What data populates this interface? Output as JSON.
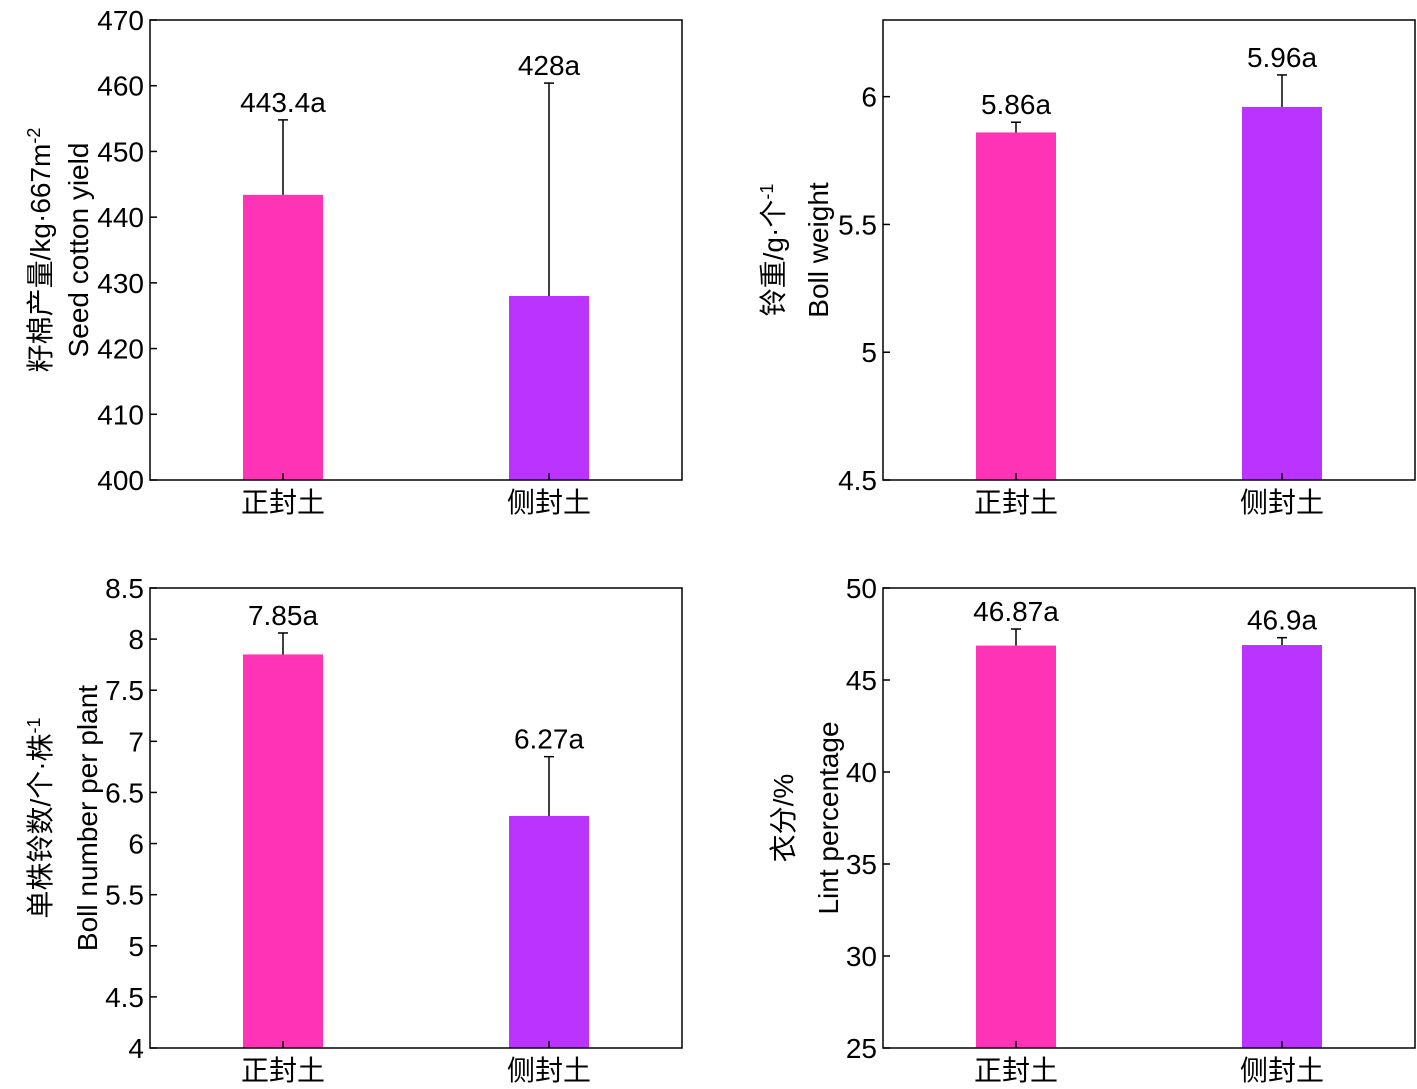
{
  "chart_data": [
    {
      "type": "bar",
      "categories": [
        "正封土",
        "侧封土"
      ],
      "values": [
        443.4,
        428
      ],
      "errors": [
        11.4,
        32.4
      ],
      "data_labels": [
        "443.4a",
        "428a"
      ],
      "ylabel_cn": "籽棉产量/kg·667m",
      "ylabel_sup": "-2",
      "ylabel_en": "Seed cotton yield",
      "ylim": [
        400,
        470
      ],
      "yticks": [
        400,
        410,
        420,
        430,
        440,
        450,
        460,
        470
      ],
      "ytick_labels": [
        "400",
        "410",
        "420",
        "430",
        "440",
        "450",
        "460",
        "470"
      ],
      "colors": [
        "#ff33b6",
        "#bb33ff"
      ]
    },
    {
      "type": "bar",
      "categories": [
        "正封土",
        "侧封土"
      ],
      "values": [
        5.86,
        5.96
      ],
      "errors": [
        0.04,
        0.125
      ],
      "data_labels": [
        "5.86a",
        "5.96a"
      ],
      "ylabel_cn": "铃重/g·个",
      "ylabel_sup": "-1",
      "ylabel_en": "Boll weight",
      "ylim": [
        4.5,
        6.3
      ],
      "yticks": [
        4.5,
        5,
        5.5,
        6
      ],
      "ytick_labels": [
        "4.5",
        "5",
        "5.5",
        "6"
      ],
      "colors": [
        "#ff33b6",
        "#bb33ff"
      ]
    },
    {
      "type": "bar",
      "categories": [
        "正封土",
        "侧封土"
      ],
      "values": [
        7.85,
        6.27
      ],
      "errors": [
        0.21,
        0.58
      ],
      "data_labels": [
        "7.85a",
        "6.27a"
      ],
      "ylabel_cn": "单株铃数/个·株",
      "ylabel_sup": "-1",
      "ylabel_en": "Boll number per plant",
      "ylim": [
        4,
        8.5
      ],
      "yticks": [
        4,
        4.5,
        5,
        5.5,
        6,
        6.5,
        7,
        7.5,
        8,
        8.5
      ],
      "ytick_labels": [
        "4",
        "4.5",
        "5",
        "5.5",
        "6",
        "6.5",
        "7",
        "7.5",
        "8",
        "8.5"
      ],
      "colors": [
        "#ff33b6",
        "#bb33ff"
      ]
    },
    {
      "type": "bar",
      "categories": [
        "正封土",
        "侧封土"
      ],
      "values": [
        46.87,
        46.9
      ],
      "errors": [
        0.9,
        0.4
      ],
      "data_labels": [
        "46.87a",
        "46.9a"
      ],
      "ylabel_cn": "衣分/%",
      "ylabel_sup": "",
      "ylabel_en": "Lint percentage",
      "ylim": [
        25,
        50
      ],
      "yticks": [
        25,
        30,
        35,
        40,
        45,
        50
      ],
      "ytick_labels": [
        "25",
        "30",
        "35",
        "40",
        "45",
        "50"
      ],
      "colors": [
        "#ff33b6",
        "#bb33ff"
      ]
    }
  ]
}
